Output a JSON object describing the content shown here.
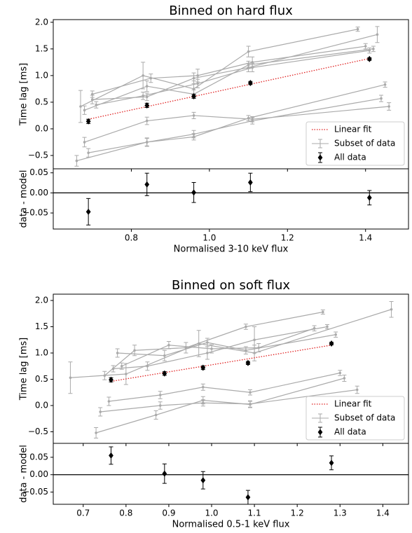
{
  "chart_data": [
    {
      "type": "errorbar",
      "title": "Binned on hard flux",
      "xlabel": "Normalised 3-10 keV flux",
      "ylabel": "Time lag [ms]",
      "xlim": [
        0.6,
        1.51
      ],
      "xticks": [
        0.8,
        {
          "value": 1.0,
          "label": "1.0"
        },
        1.2,
        1.4
      ],
      "ylim": [
        -0.75,
        2.05
      ],
      "yticks": [
        {
          "value": -0.5,
          "label": "−0.5"
        },
        {
          "value": 0,
          "label": "0.0"
        },
        {
          "value": 0.5,
          "label": "0.5"
        },
        {
          "value": 1,
          "label": "1.0"
        },
        {
          "value": 1.5,
          "label": "1.5"
        },
        {
          "value": 2,
          "label": "2.0"
        }
      ],
      "legend": "lower right",
      "series": [
        {
          "name": "All data",
          "color": "#000000",
          "x": [
            0.69,
            0.84,
            0.96,
            1.105,
            1.41
          ],
          "values": [
            0.14,
            0.44,
            0.61,
            0.86,
            1.31
          ],
          "yerr": [
            0.04,
            0.04,
            0.035,
            0.03,
            0.025
          ]
        }
      ],
      "fit": {
        "name": "Linear fit",
        "color": "#e02020",
        "x": [
          0.69,
          1.41
        ],
        "values": [
          0.18,
          1.32
        ]
      },
      "subsets": {
        "name": "Subset of data",
        "color": "#aaaaaa",
        "series": [
          {
            "x": [
              0.66,
              0.84,
              0.96,
              1.11,
              1.44
            ],
            "values": [
              -0.6,
              -0.25,
              -0.1,
              0.15,
              0.57
            ],
            "yerr": [
              0.1,
              0.08,
              0.07,
              0.06,
              0.06
            ]
          },
          {
            "x": [
              0.69,
              0.84,
              0.96,
              1.1,
              1.45
            ],
            "values": [
              -0.45,
              -0.25,
              -0.15,
              0.2,
              0.83
            ],
            "yerr": [
              0.08,
              0.07,
              0.06,
              0.05,
              0.05
            ]
          },
          {
            "x": [
              0.68,
              0.84,
              0.96,
              1.11,
              1.46
            ],
            "values": [
              -0.25,
              0.15,
              0.25,
              0.18,
              0.42
            ],
            "yerr": [
              0.09,
              0.07,
              0.06,
              0.05,
              0.07
            ]
          },
          {
            "x": [
              0.67,
              0.83,
              0.96,
              1.1,
              1.38
            ],
            "values": [
              0.42,
              1.0,
              0.75,
              1.45,
              1.87
            ],
            "yerr": [
              0.3,
              0.25,
              0.15,
              0.1,
              0.04
            ]
          },
          {
            "x": [
              0.7,
              0.84,
              0.96,
              1.1,
              1.43
            ],
            "values": [
              0.55,
              0.6,
              0.95,
              1.15,
              1.77
            ],
            "yerr": [
              0.08,
              0.07,
              0.1,
              0.08,
              0.15
            ]
          },
          {
            "x": [
              0.7,
              0.85,
              0.97,
              1.11,
              1.4
            ],
            "values": [
              0.65,
              0.95,
              1.0,
              1.25,
              1.55
            ],
            "yerr": [
              0.06,
              0.08,
              0.12,
              0.1,
              0.05
            ]
          },
          {
            "x": [
              0.68,
              0.84,
              0.96,
              1.1,
              1.42
            ],
            "values": [
              0.35,
              0.8,
              0.65,
              1.2,
              1.5
            ],
            "yerr": [
              0.08,
              0.1,
              0.08,
              0.07,
              0.05
            ]
          },
          {
            "x": [
              0.71,
              0.83,
              0.97,
              1.11,
              1.41
            ],
            "values": [
              0.45,
              0.62,
              0.85,
              1.15,
              1.47
            ],
            "yerr": [
              0.06,
              0.07,
              0.08,
              0.08,
              0.05
            ]
          }
        ]
      },
      "residual": {
        "ylabel": "data - model",
        "ylim": [
          -0.09,
          0.06
        ],
        "yticks": [
          {
            "value": -0.05,
            "label": "−0.05"
          },
          {
            "value": 0,
            "label": "0.00"
          },
          {
            "value": 0.05,
            "label": "0.05"
          }
        ],
        "values": [
          -0.047,
          0.021,
          0.001,
          0.026,
          -0.012
        ],
        "yerr": [
          0.033,
          0.028,
          0.025,
          0.023,
          0.018
        ]
      }
    },
    {
      "type": "errorbar",
      "title": "Binned on soft flux",
      "xlabel": "Normalised 0.5-1 keV flux",
      "ylabel": "Time lag [ms]",
      "xlim": [
        0.63,
        1.46
      ],
      "xticks": [
        0.7,
        0.8,
        0.9,
        {
          "value": 1.0,
          "label": "1.0"
        },
        1.1,
        1.2,
        1.3,
        1.4
      ],
      "ylim": [
        -0.72,
        2.12
      ],
      "yticks": [
        {
          "value": -0.5,
          "label": "−0.5"
        },
        {
          "value": 0,
          "label": "0.0"
        },
        {
          "value": 0.5,
          "label": "0.5"
        },
        {
          "value": 1,
          "label": "1.0"
        },
        {
          "value": 1.5,
          "label": "1.5"
        },
        {
          "value": 2,
          "label": "2.0"
        }
      ],
      "legend": "lower right",
      "series": [
        {
          "name": "All data",
          "color": "#000000",
          "x": [
            0.765,
            0.89,
            0.98,
            1.085,
            1.28
          ],
          "values": [
            0.49,
            0.61,
            0.72,
            0.81,
            1.18
          ],
          "yerr": [
            0.04,
            0.035,
            0.035,
            0.03,
            0.025
          ]
        }
      ],
      "fit": {
        "name": "Linear fit",
        "color": "#e02020",
        "x": [
          0.765,
          1.28
        ],
        "values": [
          0.46,
          1.15
        ]
      },
      "subsets": {
        "name": "Subset of data",
        "color": "#aaaaaa",
        "series": [
          {
            "x": [
              0.73,
              0.87,
              0.98,
              1.09,
              1.31
            ],
            "values": [
              -0.52,
              -0.18,
              0.1,
              0.02,
              0.52
            ],
            "yerr": [
              0.1,
              0.08,
              0.07,
              0.06,
              0.06
            ]
          },
          {
            "x": [
              0.74,
              0.88,
              0.98,
              1.09,
              1.34
            ],
            "values": [
              -0.12,
              0.0,
              0.05,
              0.03,
              0.3
            ],
            "yerr": [
              0.08,
              0.07,
              0.06,
              0.06,
              0.07
            ]
          },
          {
            "x": [
              0.76,
              0.88,
              0.98,
              1.09,
              1.3
            ],
            "values": [
              0.08,
              0.2,
              0.35,
              0.25,
              0.62
            ],
            "yerr": [
              0.08,
              0.07,
              0.06,
              0.05,
              0.05
            ]
          },
          {
            "x": [
              0.67,
              0.8,
              0.97,
              1.1,
              1.42
            ],
            "values": [
              0.53,
              0.6,
              1.18,
              1.0,
              1.83
            ],
            "yerr": [
              0.3,
              0.2,
              0.25,
              0.15,
              0.15
            ]
          },
          {
            "x": [
              0.75,
              0.82,
              0.94,
              1.08,
              1.26
            ],
            "values": [
              0.57,
              1.05,
              1.1,
              1.5,
              1.78
            ],
            "yerr": [
              0.08,
              0.1,
              0.1,
              0.05,
              0.04
            ]
          },
          {
            "x": [
              0.77,
              0.85,
              0.99,
              1.1,
              1.27
            ],
            "values": [
              0.7,
              0.75,
              1.0,
              1.25,
              1.5
            ],
            "yerr": [
              0.06,
              0.08,
              0.12,
              0.25,
              0.04
            ]
          },
          {
            "x": [
              0.78,
              0.89,
              0.99,
              1.08,
              1.29
            ],
            "values": [
              1.0,
              0.95,
              1.2,
              1.05,
              1.35
            ],
            "yerr": [
              0.08,
              0.1,
              0.08,
              0.07,
              0.05
            ]
          },
          {
            "x": [
              0.79,
              0.9,
              1.0,
              1.11,
              1.24
            ],
            "values": [
              0.75,
              1.15,
              1.08,
              1.1,
              1.47
            ],
            "yerr": [
              0.06,
              0.07,
              0.08,
              0.08,
              0.05
            ]
          }
        ]
      },
      "residual": {
        "ylabel": "data - model",
        "ylim": [
          -0.085,
          0.09
        ],
        "yticks": [
          {
            "value": -0.05,
            "label": "−0.05"
          },
          {
            "value": 0,
            "label": "0.00"
          },
          {
            "value": 0.05,
            "label": "0.05"
          }
        ],
        "values": [
          0.055,
          0.003,
          -0.016,
          -0.065,
          0.034
        ],
        "yerr": [
          0.025,
          0.028,
          0.025,
          0.02,
          0.02
        ]
      }
    }
  ]
}
